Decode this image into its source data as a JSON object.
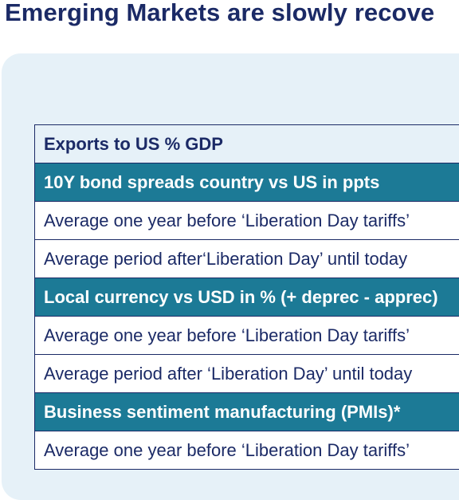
{
  "title": "Emerging Markets are slowly recove",
  "table": {
    "rows": [
      {
        "type": "head",
        "label": "Exports to US % GDP"
      },
      {
        "type": "section",
        "label": "10Y bond spreads country vs US in ppts"
      },
      {
        "type": "data",
        "label": "Average one year before ‘Liberation Day tariffs’"
      },
      {
        "type": "data",
        "label": "Average period after‘Liberation Day’ until today"
      },
      {
        "type": "section",
        "label": "Local currency vs USD in % (+ deprec - apprec)"
      },
      {
        "type": "data",
        "label": "Average one year before ‘Liberation Day tariffs’"
      },
      {
        "type": "data",
        "label": "Average period after ‘Liberation Day’ until today"
      },
      {
        "type": "section",
        "label": "Business sentiment manufacturing (PMIs)*"
      },
      {
        "type": "data",
        "label": "Average one year before ‘Liberation Day tariffs’"
      }
    ]
  },
  "colors": {
    "title": "#1b2a66",
    "panel_background": "#e6f1f8",
    "section_row": "#1c7a96",
    "data_row": "#ffffff",
    "border": "#1b2a66"
  }
}
